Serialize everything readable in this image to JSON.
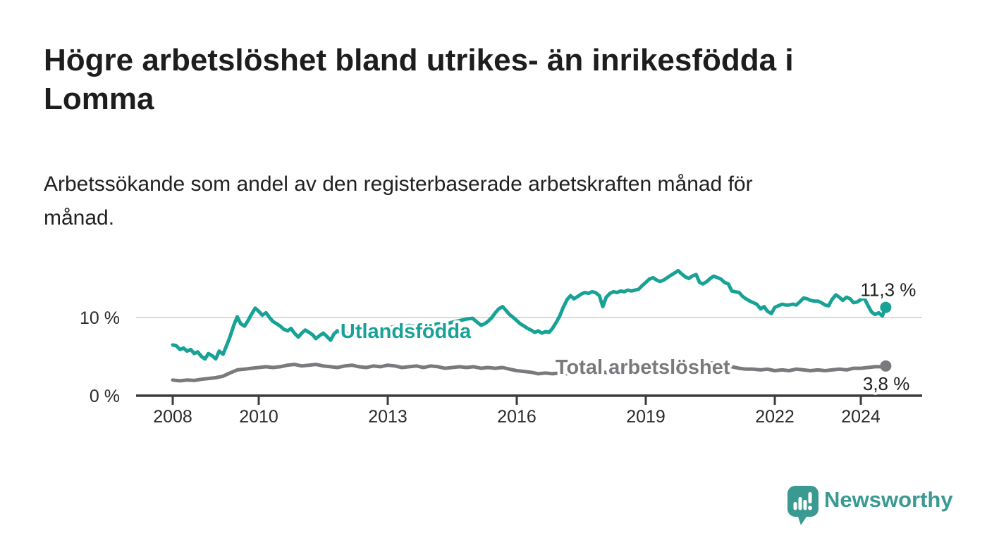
{
  "page": {
    "title_line1": "Högre arbetslöshet bland utrikes- än inrikesfödda i",
    "title_line2": "Lomma",
    "subtitle_line1": "Arbetssökande som andel av den registerbaserade arbetskraften månad för",
    "subtitle_line2": "månad."
  },
  "footer": {
    "brand": "Newsworthy"
  },
  "colors": {
    "teal_line": "#18a296",
    "gray_line": "#7a7a7e",
    "axis": "#3b3b3b",
    "grid": "#d9d9d9",
    "tick_text": "#2b2b2b",
    "value_text": "#1f1f1f",
    "brand_teal": "#3a9a92"
  },
  "chart_data": {
    "type": "line",
    "title": "Högre arbetslöshet bland utrikes- än inrikesfödda i Lomma",
    "subtitle": "Arbetssökande som andel av den registerbaserade arbetskraften månad för månad.",
    "unit": "%",
    "x_axis": {
      "ticks": [
        {
          "year": 2008,
          "label": "2008"
        },
        {
          "year": 2010,
          "label": "2010"
        },
        {
          "year": 2013,
          "label": "2013"
        },
        {
          "year": 2016,
          "label": "2016"
        },
        {
          "year": 2019,
          "label": "2019"
        },
        {
          "year": 2022,
          "label": "2022"
        },
        {
          "year": 2024,
          "label": "2024"
        }
      ]
    },
    "y_axis": {
      "ticks": [
        {
          "value": 0,
          "label": "0 %"
        },
        {
          "value": 10,
          "label": "10 %"
        }
      ],
      "gridline_at": 10,
      "ylim": [
        0,
        16.5
      ]
    },
    "series": [
      {
        "name": "Utlandsfödda",
        "color": "#18a296",
        "end_label": "11,3 %",
        "latest_value": 11.3,
        "label_anchor": {
          "year": 2011.9,
          "pct": 7.39
        },
        "points": [
          [
            2008.0,
            6.5
          ],
          [
            2008.08,
            6.4
          ],
          [
            2008.17,
            5.9
          ],
          [
            2008.25,
            6.1
          ],
          [
            2008.33,
            5.7
          ],
          [
            2008.42,
            5.9
          ],
          [
            2008.5,
            5.4
          ],
          [
            2008.58,
            5.6
          ],
          [
            2008.67,
            5.0
          ],
          [
            2008.75,
            4.7
          ],
          [
            2008.83,
            5.4
          ],
          [
            2008.92,
            5.1
          ],
          [
            2009.0,
            4.7
          ],
          [
            2009.08,
            5.7
          ],
          [
            2009.17,
            5.3
          ],
          [
            2009.25,
            6.4
          ],
          [
            2009.33,
            7.5
          ],
          [
            2009.42,
            9.0
          ],
          [
            2009.5,
            10.1
          ],
          [
            2009.58,
            9.2
          ],
          [
            2009.67,
            8.9
          ],
          [
            2009.75,
            9.6
          ],
          [
            2009.83,
            10.4
          ],
          [
            2009.92,
            11.2
          ],
          [
            2010.0,
            10.8
          ],
          [
            2010.08,
            10.3
          ],
          [
            2010.17,
            10.6
          ],
          [
            2010.25,
            10.0
          ],
          [
            2010.33,
            9.5
          ],
          [
            2010.42,
            9.2
          ],
          [
            2010.5,
            8.9
          ],
          [
            2010.58,
            8.5
          ],
          [
            2010.67,
            8.3
          ],
          [
            2010.75,
            8.6
          ],
          [
            2010.83,
            8.0
          ],
          [
            2010.92,
            7.5
          ],
          [
            2011.0,
            8.0
          ],
          [
            2011.08,
            8.4
          ],
          [
            2011.17,
            8.1
          ],
          [
            2011.25,
            7.8
          ],
          [
            2011.33,
            7.3
          ],
          [
            2011.42,
            7.7
          ],
          [
            2011.5,
            8.0
          ],
          [
            2011.58,
            7.6
          ],
          [
            2011.67,
            7.1
          ],
          [
            2011.75,
            7.9
          ],
          [
            2011.83,
            8.3
          ],
          [
            2011.92,
            8.0
          ],
          [
            2012.0,
            7.8
          ],
          [
            2012.17,
            8.2
          ],
          [
            2012.33,
            8.5
          ],
          [
            2012.5,
            8.3
          ],
          [
            2012.67,
            8.6
          ],
          [
            2012.83,
            8.8
          ],
          [
            2013.0,
            8.6
          ],
          [
            2013.17,
            8.9
          ],
          [
            2013.33,
            8.7
          ],
          [
            2013.5,
            9.0
          ],
          [
            2013.67,
            8.8
          ],
          [
            2013.83,
            9.1
          ],
          [
            2014.0,
            9.0
          ],
          [
            2014.17,
            9.2
          ],
          [
            2014.33,
            9.1
          ],
          [
            2014.5,
            9.4
          ],
          [
            2014.67,
            9.6
          ],
          [
            2014.83,
            9.8
          ],
          [
            2014.97,
            9.9
          ],
          [
            2015.08,
            9.4
          ],
          [
            2015.17,
            9.0
          ],
          [
            2015.25,
            9.2
          ],
          [
            2015.33,
            9.5
          ],
          [
            2015.42,
            10.0
          ],
          [
            2015.5,
            10.6
          ],
          [
            2015.58,
            11.1
          ],
          [
            2015.67,
            11.4
          ],
          [
            2015.75,
            10.9
          ],
          [
            2015.83,
            10.4
          ],
          [
            2015.92,
            10.0
          ],
          [
            2016.0,
            9.6
          ],
          [
            2016.08,
            9.2
          ],
          [
            2016.17,
            8.9
          ],
          [
            2016.25,
            8.6
          ],
          [
            2016.33,
            8.4
          ],
          [
            2016.42,
            8.1
          ],
          [
            2016.5,
            8.3
          ],
          [
            2016.58,
            8.0
          ],
          [
            2016.67,
            8.2
          ],
          [
            2016.75,
            8.1
          ],
          [
            2016.83,
            8.6
          ],
          [
            2016.92,
            9.4
          ],
          [
            2017.0,
            10.2
          ],
          [
            2017.08,
            11.3
          ],
          [
            2017.17,
            12.3
          ],
          [
            2017.25,
            12.8
          ],
          [
            2017.33,
            12.4
          ],
          [
            2017.42,
            12.7
          ],
          [
            2017.5,
            13.0
          ],
          [
            2017.58,
            13.2
          ],
          [
            2017.67,
            13.1
          ],
          [
            2017.75,
            13.3
          ],
          [
            2017.83,
            13.2
          ],
          [
            2017.92,
            12.8
          ],
          [
            2018.0,
            11.4
          ],
          [
            2018.08,
            12.6
          ],
          [
            2018.17,
            13.1
          ],
          [
            2018.25,
            13.3
          ],
          [
            2018.33,
            13.2
          ],
          [
            2018.42,
            13.4
          ],
          [
            2018.5,
            13.3
          ],
          [
            2018.58,
            13.5
          ],
          [
            2018.67,
            13.4
          ],
          [
            2018.75,
            13.5
          ],
          [
            2018.83,
            13.6
          ],
          [
            2018.92,
            14.1
          ],
          [
            2019.0,
            14.5
          ],
          [
            2019.08,
            14.9
          ],
          [
            2019.17,
            15.1
          ],
          [
            2019.25,
            14.8
          ],
          [
            2019.33,
            14.6
          ],
          [
            2019.42,
            14.8
          ],
          [
            2019.5,
            15.1
          ],
          [
            2019.58,
            15.4
          ],
          [
            2019.67,
            15.7
          ],
          [
            2019.75,
            16.0
          ],
          [
            2019.83,
            15.6
          ],
          [
            2019.92,
            15.2
          ],
          [
            2020.0,
            15.0
          ],
          [
            2020.08,
            15.3
          ],
          [
            2020.17,
            15.5
          ],
          [
            2020.25,
            14.5
          ],
          [
            2020.33,
            14.3
          ],
          [
            2020.42,
            14.6
          ],
          [
            2020.5,
            15.0
          ],
          [
            2020.58,
            15.3
          ],
          [
            2020.67,
            15.1
          ],
          [
            2020.75,
            14.9
          ],
          [
            2020.83,
            14.5
          ],
          [
            2020.92,
            14.3
          ],
          [
            2021.0,
            13.4
          ],
          [
            2021.08,
            13.3
          ],
          [
            2021.17,
            13.2
          ],
          [
            2021.25,
            12.7
          ],
          [
            2021.33,
            12.4
          ],
          [
            2021.42,
            12.1
          ],
          [
            2021.5,
            11.9
          ],
          [
            2021.58,
            11.7
          ],
          [
            2021.67,
            11.1
          ],
          [
            2021.75,
            11.4
          ],
          [
            2021.83,
            10.8
          ],
          [
            2021.92,
            10.5
          ],
          [
            2022.0,
            11.3
          ],
          [
            2022.08,
            11.5
          ],
          [
            2022.17,
            11.7
          ],
          [
            2022.25,
            11.6
          ],
          [
            2022.33,
            11.6
          ],
          [
            2022.42,
            11.7
          ],
          [
            2022.5,
            11.6
          ],
          [
            2022.58,
            12.0
          ],
          [
            2022.67,
            12.5
          ],
          [
            2022.75,
            12.4
          ],
          [
            2022.83,
            12.2
          ],
          [
            2022.92,
            12.1
          ],
          [
            2023.0,
            12.1
          ],
          [
            2023.08,
            11.9
          ],
          [
            2023.17,
            11.6
          ],
          [
            2023.25,
            11.5
          ],
          [
            2023.33,
            12.3
          ],
          [
            2023.42,
            12.9
          ],
          [
            2023.5,
            12.6
          ],
          [
            2023.58,
            12.2
          ],
          [
            2023.67,
            12.6
          ],
          [
            2023.75,
            12.4
          ],
          [
            2023.83,
            11.9
          ],
          [
            2023.92,
            12.0
          ],
          [
            2024.0,
            12.3
          ],
          [
            2024.08,
            12.5
          ],
          [
            2024.17,
            11.5
          ],
          [
            2024.25,
            10.7
          ],
          [
            2024.33,
            10.4
          ],
          [
            2024.42,
            10.6
          ],
          [
            2024.5,
            10.2
          ],
          [
            2024.58,
            11.3
          ]
        ]
      },
      {
        "name": "Total arbetslöshet",
        "color": "#7a7a7e",
        "end_label": "3,8 %",
        "latest_value": 3.8,
        "label_anchor": {
          "year": 2016.9,
          "pct": 2.79
        },
        "points": [
          [
            2008.0,
            2.0
          ],
          [
            2008.17,
            1.9
          ],
          [
            2008.33,
            2.0
          ],
          [
            2008.5,
            1.95
          ],
          [
            2008.67,
            2.1
          ],
          [
            2008.83,
            2.2
          ],
          [
            2009.0,
            2.3
          ],
          [
            2009.17,
            2.5
          ],
          [
            2009.33,
            2.9
          ],
          [
            2009.5,
            3.3
          ],
          [
            2009.67,
            3.4
          ],
          [
            2009.83,
            3.5
          ],
          [
            2010.0,
            3.6
          ],
          [
            2010.17,
            3.7
          ],
          [
            2010.33,
            3.6
          ],
          [
            2010.5,
            3.7
          ],
          [
            2010.67,
            3.9
          ],
          [
            2010.83,
            4.0
          ],
          [
            2011.0,
            3.8
          ],
          [
            2011.17,
            3.9
          ],
          [
            2011.33,
            4.0
          ],
          [
            2011.5,
            3.8
          ],
          [
            2011.67,
            3.7
          ],
          [
            2011.83,
            3.6
          ],
          [
            2012.0,
            3.8
          ],
          [
            2012.17,
            3.9
          ],
          [
            2012.33,
            3.7
          ],
          [
            2012.5,
            3.6
          ],
          [
            2012.67,
            3.8
          ],
          [
            2012.83,
            3.7
          ],
          [
            2013.0,
            3.9
          ],
          [
            2013.17,
            3.8
          ],
          [
            2013.33,
            3.6
          ],
          [
            2013.5,
            3.7
          ],
          [
            2013.67,
            3.8
          ],
          [
            2013.83,
            3.6
          ],
          [
            2014.0,
            3.8
          ],
          [
            2014.17,
            3.7
          ],
          [
            2014.33,
            3.5
          ],
          [
            2014.5,
            3.6
          ],
          [
            2014.67,
            3.7
          ],
          [
            2014.83,
            3.6
          ],
          [
            2015.0,
            3.7
          ],
          [
            2015.17,
            3.5
          ],
          [
            2015.33,
            3.6
          ],
          [
            2015.5,
            3.5
          ],
          [
            2015.67,
            3.6
          ],
          [
            2015.83,
            3.4
          ],
          [
            2016.0,
            3.2
          ],
          [
            2016.17,
            3.1
          ],
          [
            2016.33,
            3.0
          ],
          [
            2016.5,
            2.8
          ],
          [
            2016.67,
            2.9
          ],
          [
            2016.83,
            2.8
          ],
          [
            2017.0,
            2.9
          ],
          [
            2017.17,
            2.8
          ],
          [
            2017.33,
            2.9
          ],
          [
            2017.5,
            2.9
          ],
          [
            2017.75,
            3.0
          ],
          [
            2018.0,
            3.0
          ],
          [
            2018.25,
            2.9
          ],
          [
            2018.5,
            2.9
          ],
          [
            2018.75,
            3.0
          ],
          [
            2019.0,
            3.0
          ],
          [
            2019.25,
            3.1
          ],
          [
            2019.5,
            3.3
          ],
          [
            2019.75,
            3.5
          ],
          [
            2020.0,
            3.8
          ],
          [
            2020.25,
            4.3
          ],
          [
            2020.5,
            4.2
          ],
          [
            2020.75,
            4.0
          ],
          [
            2021.0,
            3.7
          ],
          [
            2021.17,
            3.5
          ],
          [
            2021.33,
            3.4
          ],
          [
            2021.5,
            3.4
          ],
          [
            2021.67,
            3.3
          ],
          [
            2021.83,
            3.4
          ],
          [
            2022.0,
            3.2
          ],
          [
            2022.17,
            3.3
          ],
          [
            2022.33,
            3.2
          ],
          [
            2022.5,
            3.4
          ],
          [
            2022.67,
            3.3
          ],
          [
            2022.83,
            3.2
          ],
          [
            2023.0,
            3.3
          ],
          [
            2023.17,
            3.2
          ],
          [
            2023.33,
            3.3
          ],
          [
            2023.5,
            3.4
          ],
          [
            2023.67,
            3.3
          ],
          [
            2023.83,
            3.5
          ],
          [
            2024.0,
            3.5
          ],
          [
            2024.17,
            3.6
          ],
          [
            2024.33,
            3.7
          ],
          [
            2024.5,
            3.7
          ],
          [
            2024.58,
            3.8
          ]
        ]
      }
    ]
  }
}
